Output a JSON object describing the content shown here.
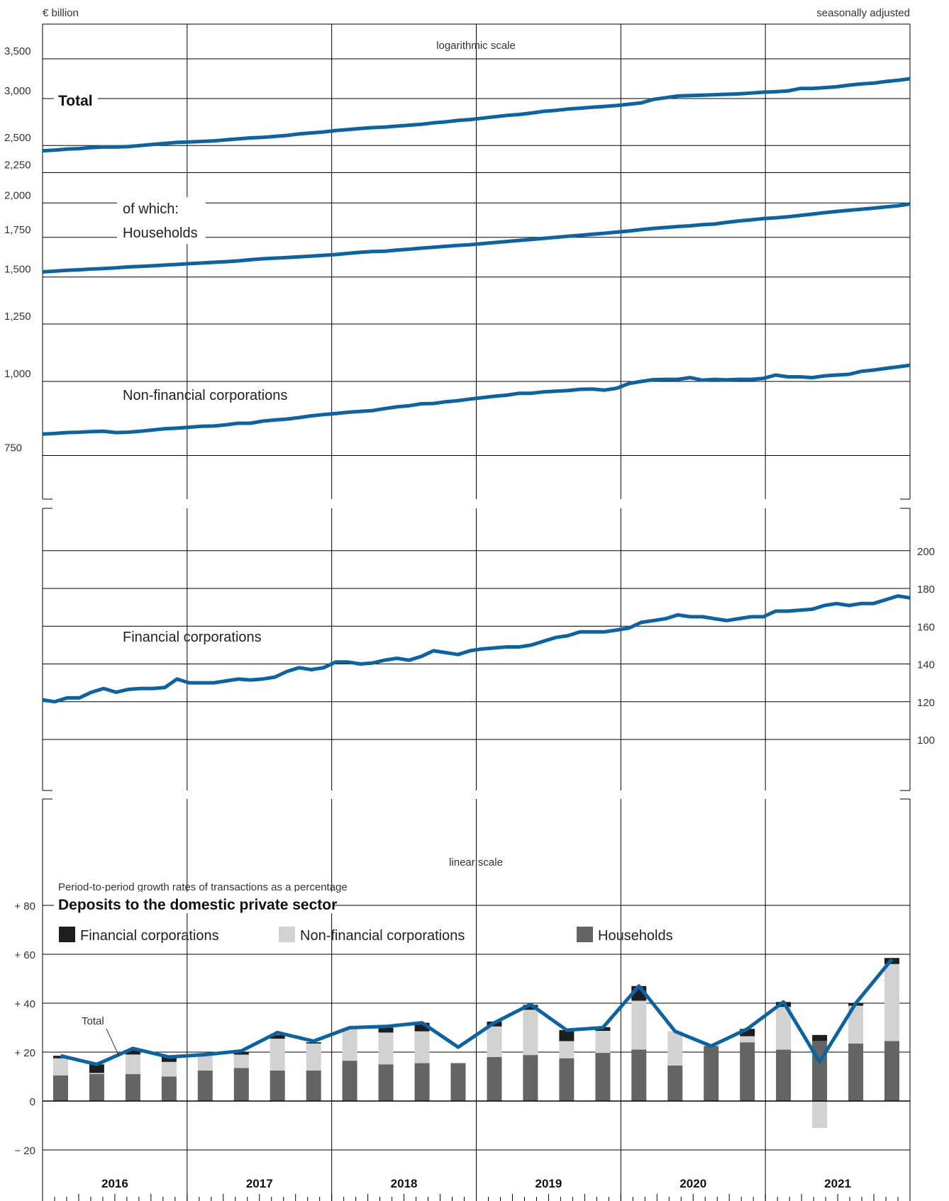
{
  "header": {
    "unit": "€ billion",
    "adjustment": "seasonally adjusted",
    "log_note": "logarithmic scale",
    "linear_note": "linear scale",
    "growth_note": "Period-to-period growth rates of transactions as a percentage"
  },
  "colors": {
    "line": "#0a64a4",
    "households": "#646464",
    "nfc": "#d2d2d2",
    "fc": "#1e1e1e",
    "grid": "#000000"
  },
  "chart_data": [
    {
      "type": "line",
      "scale": "logarithmic",
      "x": {
        "start": "2016-01",
        "end": "2021-12",
        "frequency": "monthly"
      },
      "ylim": [
        650,
        3700
      ],
      "y_ticks": [
        750,
        1000,
        1250,
        1500,
        1750,
        2000,
        2250,
        2500,
        3000,
        3500
      ],
      "y_tick_labels": [
        "750",
        "1,000",
        "1,250",
        "1,500",
        "1,750",
        "2,000",
        "2,250",
        "2,500",
        "3,000",
        "3,500"
      ],
      "grid": true,
      "series": [
        {
          "name": "Total",
          "values": [
            2450,
            2455,
            2465,
            2470,
            2480,
            2485,
            2485,
            2490,
            2500,
            2510,
            2520,
            2530,
            2535,
            2540,
            2545,
            2555,
            2565,
            2575,
            2580,
            2590,
            2600,
            2615,
            2625,
            2635,
            2650,
            2660,
            2670,
            2680,
            2685,
            2695,
            2705,
            2715,
            2730,
            2740,
            2755,
            2765,
            2780,
            2795,
            2810,
            2820,
            2835,
            2855,
            2865,
            2880,
            2890,
            2900,
            2910,
            2920,
            2935,
            2950,
            2990,
            3010,
            3030,
            3035,
            3040,
            3045,
            3050,
            3055,
            3065,
            3075,
            3080,
            3090,
            3120,
            3120,
            3130,
            3140,
            3160,
            3175,
            3185,
            3205,
            3220,
            3240
          ]
        },
        {
          "name": "of which:",
          "values": []
        },
        {
          "name": "Households",
          "values": [
            1530,
            1535,
            1540,
            1543,
            1547,
            1550,
            1555,
            1560,
            1563,
            1567,
            1571,
            1575,
            1580,
            1584,
            1588,
            1592,
            1597,
            1604,
            1610,
            1614,
            1618,
            1622,
            1627,
            1632,
            1637,
            1644,
            1651,
            1656,
            1658,
            1665,
            1671,
            1678,
            1684,
            1690,
            1696,
            1701,
            1708,
            1715,
            1722,
            1729,
            1736,
            1743,
            1750,
            1757,
            1764,
            1771,
            1778,
            1786,
            1793,
            1803,
            1812,
            1818,
            1825,
            1830,
            1838,
            1843,
            1855,
            1865,
            1873,
            1882,
            1888,
            1895,
            1905,
            1915,
            1926,
            1935,
            1944,
            1952,
            1960,
            1969,
            1978,
            1992
          ]
        },
        {
          "name": "Non-financial corporations",
          "values": [
            815,
            817,
            820,
            821,
            823,
            824,
            820,
            821,
            824,
            828,
            832,
            834,
            837,
            840,
            841,
            845,
            850,
            850,
            857,
            861,
            864,
            869,
            875,
            879,
            883,
            887,
            890,
            893,
            900,
            906,
            910,
            917,
            918,
            924,
            928,
            934,
            939,
            944,
            948,
            955,
            955,
            960,
            963,
            965,
            970,
            971,
            967,
            974,
            992,
            1000,
            1007,
            1008,
            1008,
            1015,
            1005,
            1008,
            1006,
            1008,
            1008,
            1012,
            1025,
            1018,
            1018,
            1015,
            1022,
            1025,
            1028,
            1040,
            1045,
            1052,
            1058,
            1065
          ]
        },
        {
          "name": "Financial corporations",
          "values": [
            121,
            120,
            122,
            122,
            125,
            127,
            125,
            126.5,
            127,
            127,
            127.5,
            132,
            130,
            130,
            130,
            131,
            132,
            131.5,
            132,
            133,
            136,
            138,
            137,
            138,
            141,
            141,
            140,
            140.5,
            142,
            143,
            142,
            144,
            147,
            146,
            145,
            147,
            148,
            148.5,
            149,
            149,
            150,
            152,
            154,
            155,
            157,
            157,
            157,
            158,
            159,
            162,
            163,
            164,
            166,
            165,
            165,
            164,
            163,
            164,
            165,
            165,
            168,
            168,
            168.5,
            169,
            171,
            172,
            171,
            172,
            172,
            174,
            176,
            175
          ]
        }
      ],
      "annotations": [
        "Total",
        "of which:",
        "Households",
        "Non-financial corporations",
        "Financial corporations"
      ]
    },
    {
      "type": "bar",
      "scale": "linear",
      "title": "Deposits to the domestic private sector",
      "ylim": [
        -32,
        88
      ],
      "y_ticks": [
        -20,
        0,
        20,
        40,
        60,
        80
      ],
      "y_tick_labels": [
        "− 20",
        "0",
        "+ 20",
        "+ 40",
        "+ 60",
        "+ 80"
      ],
      "categories": [
        "2016 Q1",
        "2016 Q2",
        "2016 Q3",
        "2016 Q4",
        "2017 Q1",
        "2017 Q2",
        "2017 Q3",
        "2017 Q4",
        "2018 Q1",
        "2018 Q2",
        "2018 Q3",
        "2018 Q4",
        "2019 Q1",
        "2019 Q2",
        "2019 Q3",
        "2019 Q4",
        "2020 Q1",
        "2020 Q2",
        "2020 Q3",
        "2020 Q4",
        "2021 Q1",
        "2021 Q2",
        "2021 Q3",
        "2021 Q4"
      ],
      "year_labels": [
        "2016",
        "2017",
        "2018",
        "2019",
        "2020",
        "2021"
      ],
      "stacked": true,
      "series": [
        {
          "name": "Financial corporations",
          "values": [
            1,
            3.5,
            2,
            2,
            0,
            1,
            1.5,
            0.5,
            0,
            2,
            3.5,
            0,
            2,
            2,
            4.5,
            1.5,
            6,
            0,
            0,
            3,
            2,
            2.5,
            1,
            2.5
          ]
        },
        {
          "name": "Non-financial corporations",
          "values": [
            7,
            0.5,
            8,
            6,
            7,
            5.5,
            13,
            11,
            13.5,
            13,
            13,
            0,
            12.5,
            18.5,
            7,
            9,
            20,
            14,
            0,
            2.5,
            17.5,
            -11,
            15.5,
            31.5
          ]
        },
        {
          "name": "Households",
          "values": [
            10.5,
            11,
            11,
            10,
            12.5,
            13.5,
            12.5,
            12.5,
            16.5,
            15,
            15.5,
            15.5,
            18,
            18.8,
            17.5,
            19.7,
            21,
            14.5,
            22.5,
            24,
            21,
            24.5,
            23.5,
            24.5
          ]
        },
        {
          "name": "Total",
          "type": "line",
          "values": [
            18.5,
            15,
            21.5,
            18,
            19,
            20.5,
            28,
            24.5,
            30,
            30.5,
            32,
            22,
            32,
            39.5,
            29,
            30,
            47,
            28.5,
            22.5,
            29.5,
            40.5,
            16,
            40,
            58
          ]
        }
      ],
      "legend": [
        "Financial corporations",
        "Non-financial corporations",
        "Households"
      ],
      "legend_position": "top",
      "annotation": "Total",
      "grid": true
    }
  ]
}
